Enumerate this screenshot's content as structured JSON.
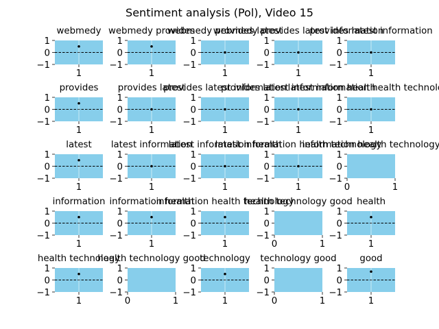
{
  "figure": {
    "title": "Sentiment analysis (Pol), Video 15"
  },
  "colors": {
    "background": "#87ceeb",
    "tick_color": "#333333",
    "point": "#000000",
    "zero_line": "#000000"
  },
  "chart_data": [
    {
      "type": "scatter",
      "title": "webmedy",
      "x": [
        1
      ],
      "y": [
        0.5
      ],
      "xticks": [
        "1"
      ],
      "yticks": [
        "1",
        "0",
        "−1"
      ],
      "ylim": [
        -1,
        1
      ],
      "xlim": [
        0.5,
        1.5
      ]
    },
    {
      "type": "scatter",
      "title": "webmedy provides",
      "x": [
        1
      ],
      "y": [
        0.5
      ],
      "xticks": [
        "1"
      ],
      "yticks": [
        "1",
        "0",
        "−1"
      ],
      "ylim": [
        -1,
        1
      ],
      "xlim": [
        0.5,
        1.5
      ]
    },
    {
      "type": "scatter",
      "title": "webmedy provides latest",
      "x": [
        1
      ],
      "y": [
        0
      ],
      "xticks": [
        "1"
      ],
      "yticks": [
        "1",
        "0",
        "−1"
      ],
      "ylim": [
        -1,
        1
      ],
      "xlim": [
        0.5,
        1.5
      ]
    },
    {
      "type": "scatter",
      "title": "webmedy provides latest information",
      "x": [
        1
      ],
      "y": [
        0
      ],
      "xticks": [
        "1"
      ],
      "yticks": [
        "1",
        "0",
        "−1"
      ],
      "ylim": [
        -1,
        1
      ],
      "xlim": [
        0.5,
        1.5
      ]
    },
    {
      "type": "scatter",
      "title": "provides latest information",
      "x": [
        1
      ],
      "y": [
        0
      ],
      "xticks": [
        "1"
      ],
      "yticks": [
        "1",
        "0",
        "−1"
      ],
      "ylim": [
        -1,
        1
      ],
      "xlim": [
        0.5,
        1.5
      ]
    },
    {
      "type": "scatter",
      "title": "provides",
      "x": [
        1
      ],
      "y": [
        0.5
      ],
      "xticks": [
        "1"
      ],
      "yticks": [
        "1",
        "0",
        "−1"
      ],
      "ylim": [
        -1,
        1
      ],
      "xlim": [
        0.5,
        1.5
      ]
    },
    {
      "type": "scatter",
      "title": "provides latest",
      "x": [
        1
      ],
      "y": [
        0
      ],
      "xticks": [
        "1"
      ],
      "yticks": [
        "1",
        "0",
        "−1"
      ],
      "ylim": [
        -1,
        1
      ],
      "xlim": [
        0.5,
        1.5
      ]
    },
    {
      "type": "scatter",
      "title": "provides latest information",
      "x": [
        1
      ],
      "y": [
        0
      ],
      "xticks": [
        "1"
      ],
      "yticks": [
        "1",
        "0",
        "−1"
      ],
      "ylim": [
        -1,
        1
      ],
      "xlim": [
        0.5,
        1.5
      ]
    },
    {
      "type": "scatter",
      "title": "provides latest information health",
      "x": [
        1
      ],
      "y": [
        0
      ],
      "xticks": [
        "1"
      ],
      "yticks": [
        "1",
        "0",
        "−1"
      ],
      "ylim": [
        -1,
        1
      ],
      "xlim": [
        0.5,
        1.5
      ]
    },
    {
      "type": "scatter",
      "title": "latest information health technology",
      "x": [
        1
      ],
      "y": [
        0
      ],
      "xticks": [
        "1"
      ],
      "yticks": [
        "1",
        "0",
        "−1"
      ],
      "ylim": [
        -1,
        1
      ],
      "xlim": [
        0.5,
        1.5
      ]
    },
    {
      "type": "scatter",
      "title": "latest",
      "x": [
        1
      ],
      "y": [
        0.5
      ],
      "xticks": [
        "1"
      ],
      "yticks": [
        "1",
        "0",
        "−1"
      ],
      "ylim": [
        -1,
        1
      ],
      "xlim": [
        0.5,
        1.5
      ]
    },
    {
      "type": "scatter",
      "title": "latest information",
      "x": [
        1
      ],
      "y": [
        0
      ],
      "xticks": [
        "1"
      ],
      "yticks": [
        "1",
        "0",
        "−1"
      ],
      "ylim": [
        -1,
        1
      ],
      "xlim": [
        0.5,
        1.5
      ]
    },
    {
      "type": "scatter",
      "title": "latest information health",
      "x": [
        1
      ],
      "y": [
        0
      ],
      "xticks": [
        "1"
      ],
      "yticks": [
        "1",
        "0",
        "−1"
      ],
      "ylim": [
        -1,
        1
      ],
      "xlim": [
        0.5,
        1.5
      ]
    },
    {
      "type": "scatter",
      "title": "latest information health technology",
      "x": [
        1
      ],
      "y": [
        0
      ],
      "xticks": [
        "1"
      ],
      "yticks": [
        "1",
        "0",
        "−1"
      ],
      "ylim": [
        -1,
        1
      ],
      "xlim": [
        0.5,
        1.5
      ]
    },
    {
      "type": "scatter",
      "title": "information health technology",
      "x": [],
      "y": [],
      "xticks": [
        "0",
        "1"
      ],
      "yticks": [
        "1",
        "0",
        "−1"
      ],
      "ylim": [
        -1,
        1
      ],
      "xlim": [
        0,
        1
      ]
    },
    {
      "type": "scatter",
      "title": "information",
      "x": [
        1
      ],
      "y": [
        0.5
      ],
      "xticks": [
        "1"
      ],
      "yticks": [
        "1",
        "0",
        "−1"
      ],
      "ylim": [
        -1,
        1
      ],
      "xlim": [
        0.5,
        1.5
      ]
    },
    {
      "type": "scatter",
      "title": "information health",
      "x": [
        1
      ],
      "y": [
        0.5
      ],
      "xticks": [
        "1"
      ],
      "yticks": [
        "1",
        "0",
        "−1"
      ],
      "ylim": [
        -1,
        1
      ],
      "xlim": [
        0.5,
        1.5
      ]
    },
    {
      "type": "scatter",
      "title": "information health technology",
      "x": [
        1
      ],
      "y": [
        0.5
      ],
      "xticks": [
        "1"
      ],
      "yticks": [
        "1",
        "0",
        "−1"
      ],
      "ylim": [
        -1,
        1
      ],
      "xlim": [
        0.5,
        1.5
      ]
    },
    {
      "type": "scatter",
      "title": "health technology good",
      "x": [],
      "y": [],
      "xticks": [
        "0",
        "1"
      ],
      "yticks": [
        "1",
        "0",
        "−1"
      ],
      "ylim": [
        -1,
        1
      ],
      "xlim": [
        0,
        1
      ]
    },
    {
      "type": "scatter",
      "title": "health",
      "x": [
        1
      ],
      "y": [
        0.5
      ],
      "xticks": [
        "1"
      ],
      "yticks": [
        "1",
        "0",
        "−1"
      ],
      "ylim": [
        -1,
        1
      ],
      "xlim": [
        0.5,
        1.5
      ]
    },
    {
      "type": "scatter",
      "title": "health technology",
      "x": [
        1
      ],
      "y": [
        0.5
      ],
      "xticks": [
        "1"
      ],
      "yticks": [
        "1",
        "0",
        "−1"
      ],
      "ylim": [
        -1,
        1
      ],
      "xlim": [
        0.5,
        1.5
      ]
    },
    {
      "type": "scatter",
      "title": "health technology good",
      "x": [],
      "y": [],
      "xticks": [
        "0",
        "1"
      ],
      "yticks": [
        "1",
        "0",
        "−1"
      ],
      "ylim": [
        -1,
        1
      ],
      "xlim": [
        0,
        1
      ]
    },
    {
      "type": "scatter",
      "title": "technology",
      "x": [
        1
      ],
      "y": [
        0.5
      ],
      "xticks": [
        "1"
      ],
      "yticks": [
        "1",
        "0",
        "−1"
      ],
      "ylim": [
        -1,
        1
      ],
      "xlim": [
        0.5,
        1.5
      ]
    },
    {
      "type": "scatter",
      "title": "technology good",
      "x": [],
      "y": [],
      "xticks": [
        "0",
        "1"
      ],
      "yticks": [
        "1",
        "0",
        "−1"
      ],
      "ylim": [
        -1,
        1
      ],
      "xlim": [
        0,
        1
      ]
    },
    {
      "type": "scatter",
      "title": "good",
      "x": [
        1
      ],
      "y": [
        0.7
      ],
      "xticks": [
        "1"
      ],
      "yticks": [
        "1",
        "0",
        "−1"
      ],
      "ylim": [
        -1,
        1
      ],
      "xlim": [
        0.5,
        1.5
      ]
    }
  ]
}
